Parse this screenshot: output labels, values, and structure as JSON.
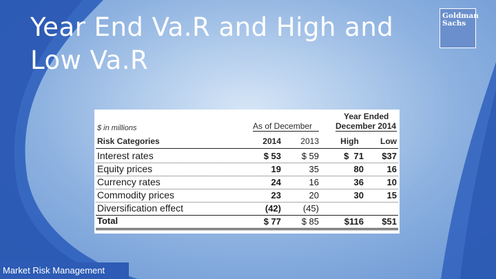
{
  "slide": {
    "title": "Year End Va.R and High and Low Va.R",
    "logo": {
      "line1": "Goldman",
      "line2": "Sachs"
    },
    "footer": "Market Risk Management"
  },
  "table": {
    "units_label": "$ in millions",
    "group_header_left": "As of December",
    "group_header_right_line1": "Year Ended",
    "group_header_right_line2": "December 2014",
    "columns": [
      "Risk Categories",
      "2014",
      "2013",
      "High",
      "Low"
    ],
    "rows": [
      {
        "category": "Interest rates",
        "v2014": "$ 53",
        "v2013": "$ 59",
        "high": "$  71",
        "low": "$37"
      },
      {
        "category": "Equity prices",
        "v2014": "19",
        "v2013": "35",
        "high": "80",
        "low": "16"
      },
      {
        "category": "Currency rates",
        "v2014": "24",
        "v2013": "16",
        "high": "36",
        "low": "10"
      },
      {
        "category": "Commodity prices",
        "v2014": "23",
        "v2013": "20",
        "high": "30",
        "low": "15"
      },
      {
        "category": "Diversification effect",
        "v2014": "(42)",
        "v2013": "(45)",
        "high": "",
        "low": ""
      },
      {
        "category": "Total",
        "v2014": "$ 77",
        "v2013": "$ 85",
        "high": "$116",
        "low": "$51"
      }
    ]
  }
}
